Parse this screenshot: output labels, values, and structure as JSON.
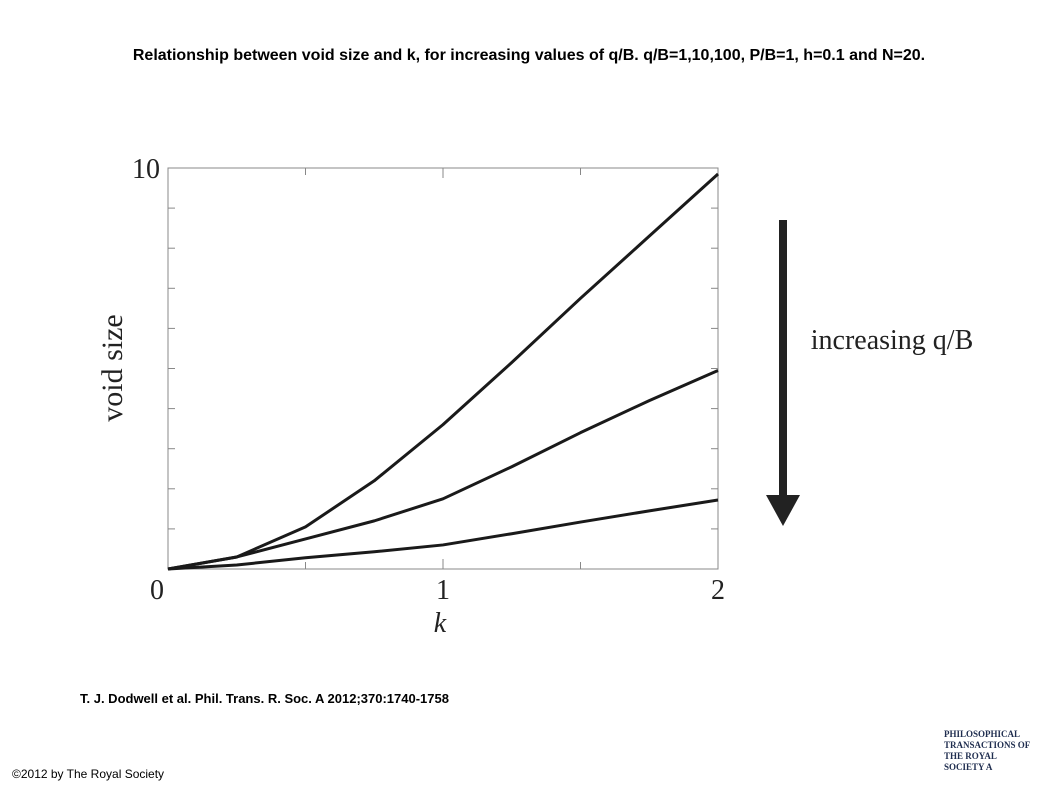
{
  "chart_data": {
    "type": "line",
    "title": "Relationship between void size and k, for increasing values of q/B. q/B=1,10,100, P/B=1, h=0.1 and N=20.",
    "x_label": "k",
    "y_label": "void size",
    "annotation": "increasing q/B",
    "x": [
      0,
      0.25,
      0.5,
      0.75,
      1,
      1.25,
      1.5,
      1.75,
      2
    ],
    "series": [
      {
        "color": "#1a1a1a",
        "values": [
          0,
          0.3,
          1.05,
          2.2,
          3.6,
          5.15,
          6.75,
          8.3,
          9.85
        ]
      },
      {
        "color": "#1a1a1a",
        "values": [
          0,
          0.3,
          0.75,
          1.2,
          1.75,
          2.55,
          3.4,
          4.2,
          4.95
        ]
      },
      {
        "color": "#1a1a1a",
        "values": [
          0,
          0.1,
          0.28,
          0.43,
          0.6,
          0.88,
          1.17,
          1.45,
          1.72
        ]
      }
    ],
    "xlim": [
      0,
      2
    ],
    "ylim": [
      0,
      10
    ],
    "xticks": [
      0,
      1,
      2
    ],
    "x_minor_ticks": [
      0.5,
      1.5
    ],
    "yticks": [
      10
    ],
    "y_minor_ticks": [
      1,
      2,
      3,
      4,
      5,
      6,
      7,
      8,
      9
    ]
  },
  "citation": "T. J. Dodwell et al. Phil. Trans. R. Soc. A 2012;370:1740-1758",
  "copyright": "©2012 by The Royal Society",
  "logo": "PHILOSOPHICAL TRANSACTIONS OF THE ROYAL SOCIETY A"
}
